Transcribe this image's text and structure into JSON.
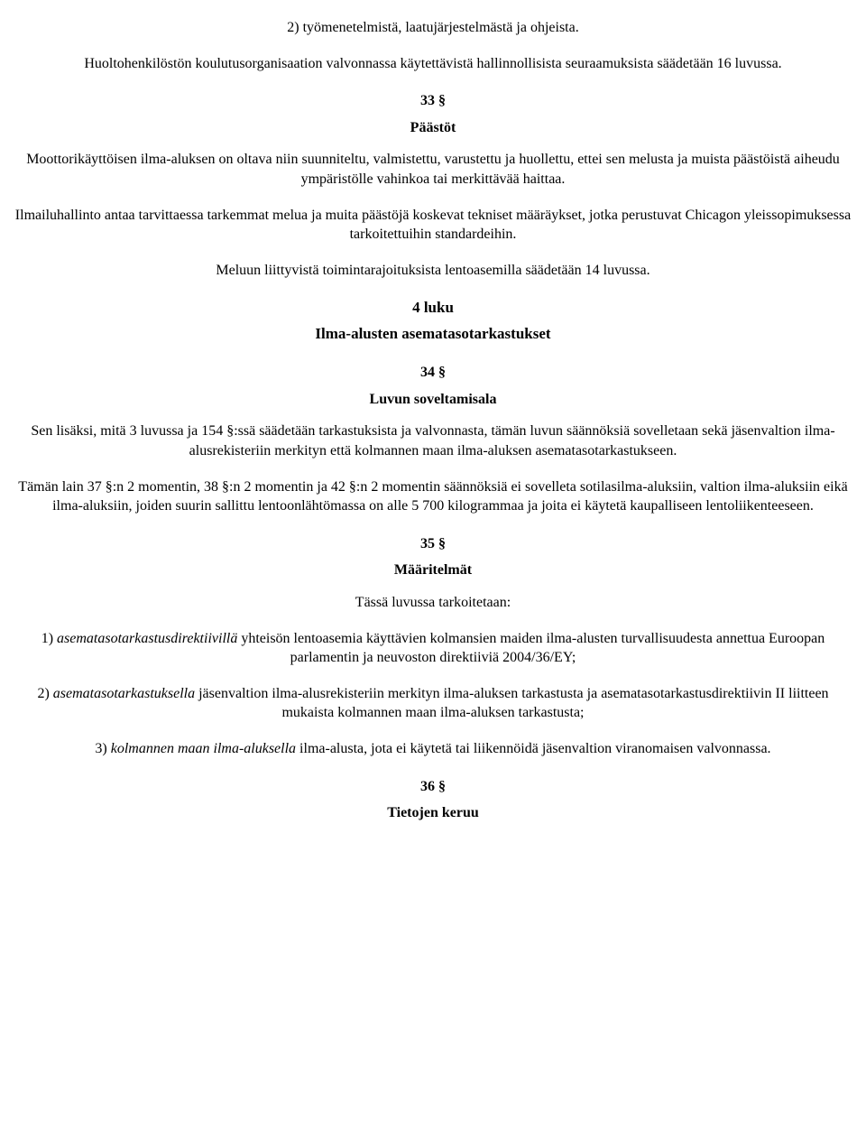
{
  "colors": {
    "text": "#000000",
    "bg": "#ffffff"
  },
  "typography": {
    "family": "Times New Roman",
    "body_size_pt": 12,
    "heading_size_pt": 12,
    "bold_weight": 700
  },
  "p_intro_1": "2) työmenetelmistä, laatujärjestelmästä ja ohjeista.",
  "p_intro_2": "Huoltohenkilöstön koulutusorganisaation valvonnassa käytettävistä hallinnollisista seuraamuksista säädetään 16 luvussa.",
  "s33_num": "33 §",
  "s33_title": "Päästöt",
  "s33_p1": "Moottorikäyttöisen ilma-aluksen on oltava niin suunniteltu, valmistettu, varustettu ja huollettu, ettei sen melusta ja muista päästöistä aiheudu ympäristölle vahinkoa tai merkittävää haittaa.",
  "s33_p2": "Ilmailuhallinto antaa tarvittaessa tarkemmat melua ja muita päästöjä koskevat tekniset määräykset, jotka perustuvat Chicagon yleissopimuksessa tarkoitettuihin standardeihin.",
  "s33_p3": "Meluun liittyvistä toimintarajoituksista lentoasemilla säädetään 14 luvussa.",
  "chap4_num": "4 luku",
  "chap4_title": "Ilma-alusten asematasotarkastukset",
  "s34_num": "34 §",
  "s34_title": "Luvun soveltamisala",
  "s34_p1": "Sen lisäksi, mitä 3 luvussa ja 154 §:ssä säädetään tarkastuksista ja valvonnasta, tämän luvun säännöksiä sovelletaan sekä jäsenvaltion ilma-alusrekisteriin merkityn että kolmannen maan ilma-aluksen asematasotarkastukseen.",
  "s34_p2": "Tämän lain 37 §:n 2 momentin, 38 §:n 2 momentin ja 42 §:n 2 momentin säännöksiä ei sovelleta sotilasilma-aluksiin, valtion ilma-aluksiin eikä ilma-aluksiin, joiden suurin sallittu lentoonlähtömassa on alle 5 700 kilogrammaa ja joita ei käytetä kaupalliseen lentoliikenteeseen.",
  "s35_num": "35 §",
  "s35_title": "Määritelmät",
  "s35_lead": "Tässä luvussa tarkoitetaan:",
  "s35_d1_pre": "1) ",
  "s35_d1_term": "asematasotarkastusdirektiivillä",
  "s35_d1_rest": " yhteisön lentoasemia käyttävien kolmansien maiden ilma-alusten turvallisuudesta annettua Euroopan parlamentin ja neuvoston direktiiviä 2004/36/EY;",
  "s35_d2_pre": "2) ",
  "s35_d2_term": "asematasotarkastuksella",
  "s35_d2_rest": " jäsenvaltion ilma-alusrekisteriin merkityn ilma-aluksen tarkastusta ja asematasotarkastusdirektiivin II liitteen mukaista kolmannen maan ilma-aluksen tarkastusta;",
  "s35_d3_pre": "3) ",
  "s35_d3_term": "kolmannen maan ilma-aluksella",
  "s35_d3_rest": " ilma-alusta, jota ei käytetä tai liikennöidä jäsenvaltion viranomaisen valvonnassa.",
  "s36_num": "36 §",
  "s36_title": "Tietojen keruu"
}
